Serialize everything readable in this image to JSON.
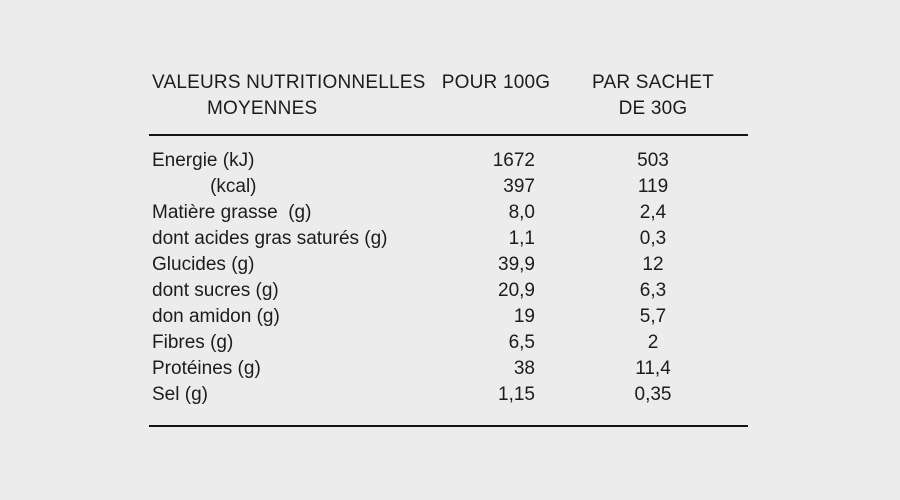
{
  "background_color": "#ececec",
  "text_color": "#1c1c1c",
  "rule_color": "#141414",
  "table": {
    "header": {
      "col1_line1": "VALEURS NUTRITIONNELLES",
      "col1_line2": "MOYENNES",
      "col2": "POUR 100G",
      "col3_line1": "PAR SACHET",
      "col3_line2": "DE 30G"
    },
    "rows": [
      {
        "label": "Energie (kJ)",
        "per_100g": "1672",
        "per_sachet_30g": "503"
      },
      {
        "label": "           (kcal)",
        "per_100g": "397",
        "per_sachet_30g": "119"
      },
      {
        "label": "Matière grasse  (g)",
        "per_100g": "8,0",
        "per_sachet_30g": "2,4"
      },
      {
        "label": "dont acides gras saturés (g)",
        "per_100g": "1,1",
        "per_sachet_30g": "0,3"
      },
      {
        "label": "Glucides (g)",
        "per_100g": "39,9",
        "per_sachet_30g": "12"
      },
      {
        "label": "dont sucres (g)",
        "per_100g": "20,9",
        "per_sachet_30g": "6,3"
      },
      {
        "label": "don amidon (g)",
        "per_100g": "19",
        "per_sachet_30g": "5,7"
      },
      {
        "label": "Fibres (g)",
        "per_100g": "6,5",
        "per_sachet_30g": "2"
      },
      {
        "label": "Protéines (g)",
        "per_100g": "38",
        "per_sachet_30g": "11,4"
      },
      {
        "label": "Sel (g)",
        "per_100g": "1,15",
        "per_sachet_30g": "0,35"
      }
    ]
  }
}
